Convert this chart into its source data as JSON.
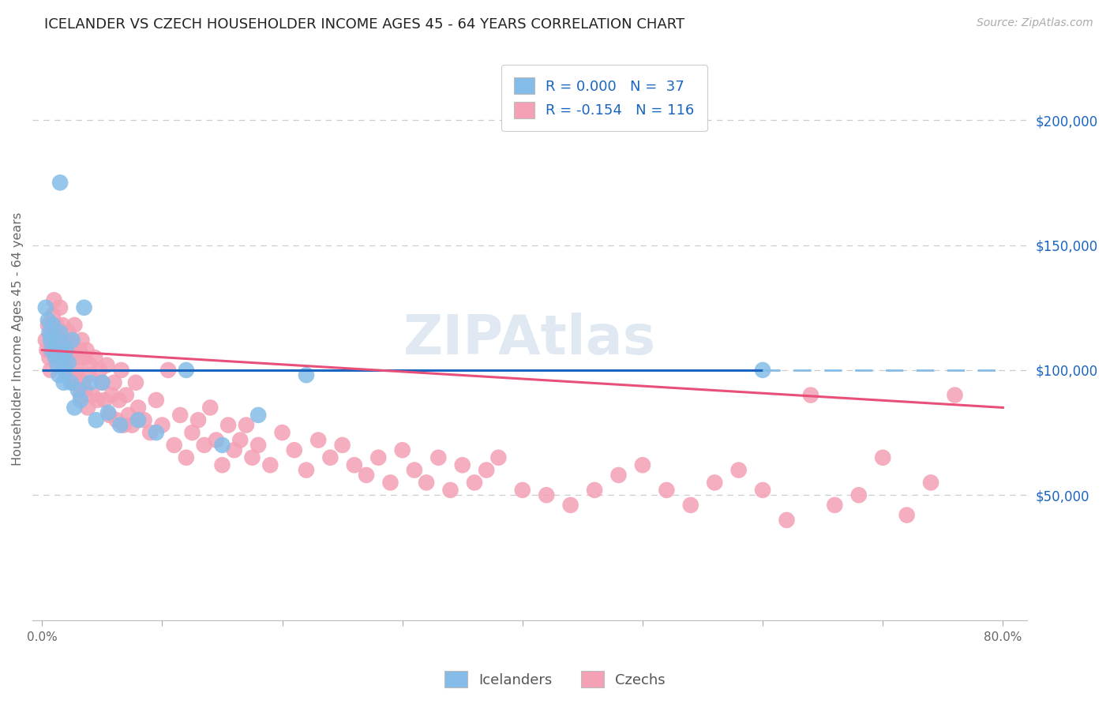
{
  "title": "ICELANDER VS CZECH HOUSEHOLDER INCOME AGES 45 - 64 YEARS CORRELATION CHART",
  "source": "Source: ZipAtlas.com",
  "ylabel": "Householder Income Ages 45 - 64 years",
  "xlim": [
    -0.008,
    0.82
  ],
  "ylim": [
    0,
    225000
  ],
  "ytick_values": [
    50000,
    100000,
    150000,
    200000
  ],
  "ytick_labels": [
    "$50,000",
    "$100,000",
    "$150,000",
    "$200,000"
  ],
  "xtick_values": [
    0.0,
    0.1,
    0.2,
    0.3,
    0.4,
    0.5,
    0.6,
    0.7,
    0.8
  ],
  "xtick_labels": [
    "0.0%",
    "",
    "",
    "",
    "",
    "",
    "",
    "",
    "80.0%"
  ],
  "icelander_color": "#85bce8",
  "czech_color": "#f4a0b5",
  "icelander_line_color": "#1a65c0",
  "czech_line_color": "#e8507a",
  "dashed_line_color": "#85bce8",
  "watermark": "ZIPAtlas",
  "background_color": "#ffffff",
  "grid_color": "#cccccc",
  "title_fontsize": 13,
  "source_fontsize": 10,
  "axis_label_color": "#666666",
  "tick_color_right": "#1a65c0",
  "icelander_R": 0.0,
  "icelander_N": 37,
  "czech_R": -0.154,
  "czech_N": 116,
  "legend_label_icelanders": "Icelanders",
  "legend_label_czechs": "Czechs",
  "ice_R_str": "R = 0.000",
  "ice_N_str": "N =  37",
  "cz_R_str": "R = -0.154",
  "cz_N_str": "N = 116",
  "icelander_x": [
    0.003,
    0.005,
    0.006,
    0.007,
    0.008,
    0.009,
    0.01,
    0.011,
    0.012,
    0.013,
    0.014,
    0.015,
    0.016,
    0.017,
    0.018,
    0.019,
    0.02,
    0.022,
    0.024,
    0.025,
    0.027,
    0.03,
    0.032,
    0.035,
    0.04,
    0.045,
    0.05,
    0.055,
    0.065,
    0.08,
    0.095,
    0.12,
    0.15,
    0.18,
    0.22,
    0.6,
    0.015
  ],
  "icelander_y": [
    125000,
    120000,
    115000,
    112000,
    108000,
    118000,
    113000,
    105000,
    108000,
    102000,
    98000,
    115000,
    110000,
    105000,
    95000,
    100000,
    108000,
    103000,
    95000,
    112000,
    85000,
    92000,
    88000,
    125000,
    95000,
    80000,
    95000,
    83000,
    78000,
    80000,
    75000,
    100000,
    70000,
    82000,
    98000,
    100000,
    175000
  ],
  "czech_x": [
    0.003,
    0.004,
    0.005,
    0.006,
    0.007,
    0.008,
    0.009,
    0.01,
    0.011,
    0.012,
    0.013,
    0.014,
    0.015,
    0.016,
    0.017,
    0.018,
    0.019,
    0.02,
    0.021,
    0.022,
    0.023,
    0.024,
    0.025,
    0.026,
    0.027,
    0.028,
    0.029,
    0.03,
    0.031,
    0.032,
    0.033,
    0.034,
    0.035,
    0.036,
    0.037,
    0.038,
    0.039,
    0.04,
    0.042,
    0.044,
    0.046,
    0.048,
    0.05,
    0.052,
    0.054,
    0.056,
    0.058,
    0.06,
    0.062,
    0.064,
    0.066,
    0.068,
    0.07,
    0.072,
    0.075,
    0.078,
    0.08,
    0.085,
    0.09,
    0.095,
    0.1,
    0.105,
    0.11,
    0.115,
    0.12,
    0.125,
    0.13,
    0.135,
    0.14,
    0.145,
    0.15,
    0.155,
    0.16,
    0.165,
    0.17,
    0.175,
    0.18,
    0.19,
    0.2,
    0.21,
    0.22,
    0.23,
    0.24,
    0.25,
    0.26,
    0.27,
    0.28,
    0.29,
    0.3,
    0.31,
    0.32,
    0.33,
    0.34,
    0.35,
    0.36,
    0.37,
    0.38,
    0.4,
    0.42,
    0.44,
    0.46,
    0.48,
    0.5,
    0.52,
    0.54,
    0.56,
    0.58,
    0.6,
    0.62,
    0.64,
    0.66,
    0.68,
    0.7,
    0.72,
    0.74,
    0.76
  ],
  "czech_y": [
    112000,
    108000,
    118000,
    105000,
    100000,
    115000,
    122000,
    128000,
    110000,
    118000,
    105000,
    112000,
    125000,
    108000,
    118000,
    102000,
    108000,
    112000,
    105000,
    115000,
    98000,
    110000,
    108000,
    95000,
    118000,
    100000,
    105000,
    98000,
    108000,
    90000,
    112000,
    95000,
    105000,
    92000,
    108000,
    85000,
    98000,
    102000,
    90000,
    105000,
    88000,
    100000,
    95000,
    88000,
    102000,
    82000,
    90000,
    95000,
    80000,
    88000,
    100000,
    78000,
    90000,
    82000,
    78000,
    95000,
    85000,
    80000,
    75000,
    88000,
    78000,
    100000,
    70000,
    82000,
    65000,
    75000,
    80000,
    70000,
    85000,
    72000,
    62000,
    78000,
    68000,
    72000,
    78000,
    65000,
    70000,
    62000,
    75000,
    68000,
    60000,
    72000,
    65000,
    70000,
    62000,
    58000,
    65000,
    55000,
    68000,
    60000,
    55000,
    65000,
    52000,
    62000,
    55000,
    60000,
    65000,
    52000,
    50000,
    46000,
    52000,
    58000,
    62000,
    52000,
    46000,
    55000,
    60000,
    52000,
    40000,
    90000,
    46000,
    50000,
    65000,
    42000,
    55000,
    90000
  ]
}
